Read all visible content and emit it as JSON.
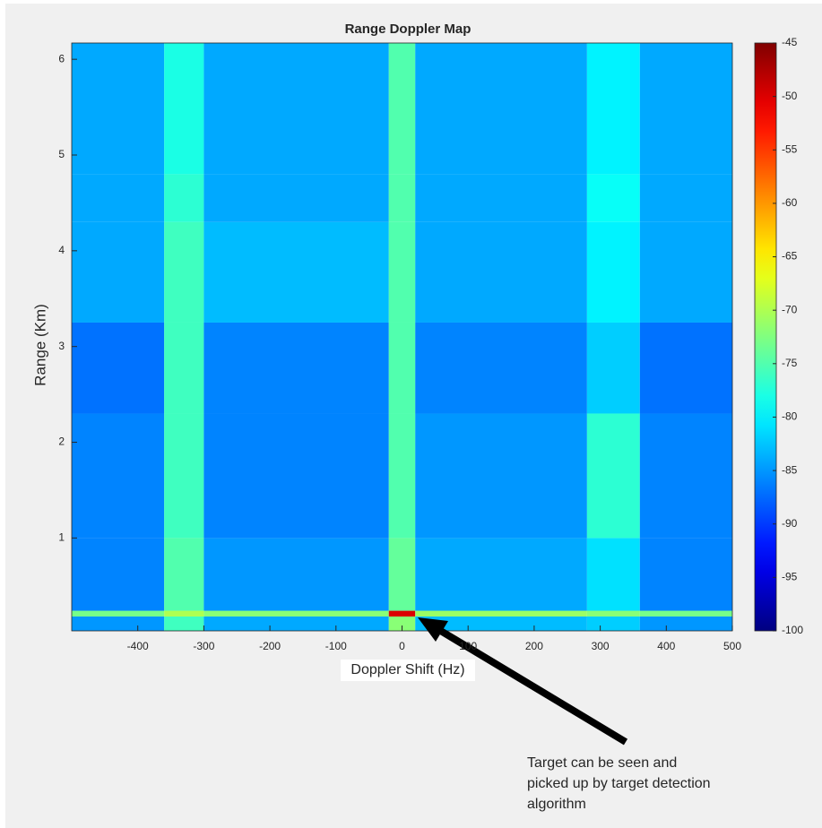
{
  "chart_data": {
    "type": "heatmap",
    "title": "Range Doppler Map",
    "x_label": "Doppler Shift (Hz)",
    "y_label": "Range (Km)",
    "xbins": [
      -500,
      -360,
      -300,
      -20,
      20,
      280,
      360,
      500
    ],
    "ybins": [
      0.03,
      0.18,
      0.24,
      1,
      2.3,
      3.25,
      4.3,
      4.8,
      6.17
    ],
    "values": [
      [
        -85,
        -76,
        -84,
        -72,
        -83,
        -82,
        -85
      ],
      [
        -73,
        -70,
        -72,
        -50,
        -71,
        -72,
        -73
      ],
      [
        -86,
        -75,
        -85,
        -74,
        -84,
        -81,
        -86
      ],
      [
        -86,
        -76,
        -86,
        -75,
        -85,
        -77,
        -86
      ],
      [
        -87,
        -76,
        -86,
        -75,
        -86,
        -82,
        -87
      ],
      [
        -84,
        -76,
        -83,
        -75,
        -84,
        -80,
        -84
      ],
      [
        -84,
        -77,
        -84,
        -75,
        -84,
        -79,
        -84
      ],
      [
        -84,
        -78,
        -84,
        -75,
        -84,
        -80,
        -84
      ]
    ],
    "xlim": [
      -500,
      500
    ],
    "xticks": [
      -400,
      -300,
      -200,
      -100,
      0,
      100,
      200,
      300,
      400,
      500
    ],
    "ylim": [
      0.03,
      6.17
    ],
    "yticks": [
      1,
      2,
      3,
      4,
      5,
      6
    ],
    "colormap": "jet",
    "clim": [
      -100,
      -45
    ],
    "cticks": [
      -100,
      -95,
      -90,
      -85,
      -80,
      -75,
      -70,
      -65,
      -60,
      -55,
      -50,
      -45
    ],
    "annotation": [
      "Target can be seen and",
      "picked up by target detection",
      "algorithm"
    ]
  }
}
